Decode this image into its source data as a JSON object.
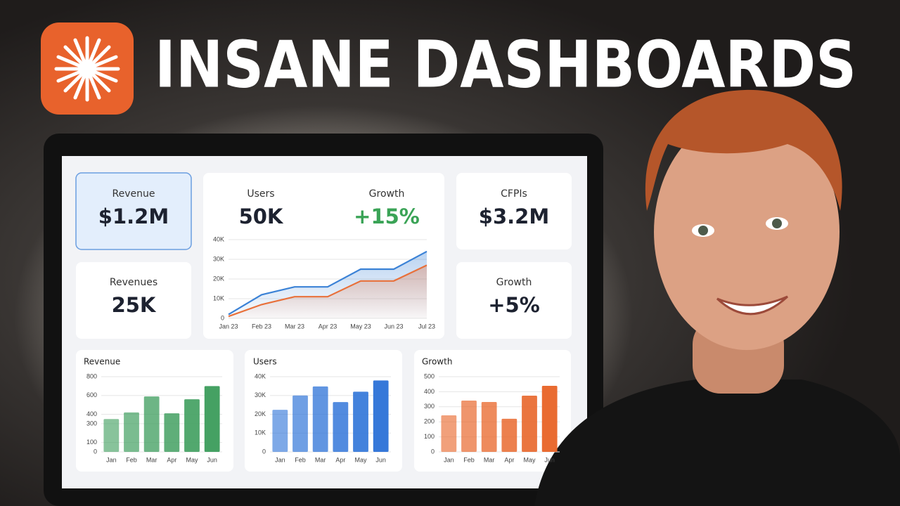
{
  "title": "INSANE DASHBOARDS",
  "kpis": [
    {
      "label": "Revenue",
      "value": "$1.2M"
    },
    {
      "label": "Revenues",
      "value": "25K"
    },
    {
      "label": "Users",
      "value": "50K"
    },
    {
      "label": "Growth",
      "value": "+15%"
    },
    {
      "label": "CFPIs",
      "value": "$3.2M"
    },
    {
      "label": "Growth",
      "value": "+5%"
    }
  ],
  "chart_data": [
    {
      "type": "line",
      "categories": [
        "Jan 23",
        "Feb 23",
        "Mar 23",
        "Apr 23",
        "May 23",
        "Jun 23",
        "Jul 23"
      ],
      "series": [
        {
          "color": "#3b82d6",
          "values": [
            2000,
            12000,
            16000,
            16000,
            25000,
            25000,
            34000
          ]
        },
        {
          "color": "#e8703a",
          "values": [
            1000,
            7000,
            11000,
            11000,
            19000,
            19000,
            27000
          ]
        }
      ],
      "ylim": [
        0,
        40000
      ],
      "yticks": [
        0,
        {
          "value": 10000,
          "label": "10K"
        },
        {
          "value": 20000,
          "label": "20K"
        },
        {
          "value": 30000,
          "label": "30K"
        },
        {
          "value": 40000,
          "label": "40K"
        }
      ],
      "grid": true
    },
    {
      "type": "bar",
      "title": "Revenue",
      "categories": [
        "Jan",
        "Feb",
        "Mar",
        "Apr",
        "May",
        "Jun"
      ],
      "values": [
        350,
        420,
        590,
        410,
        560,
        700
      ],
      "color": "#3f9e5e",
      "ylim": [
        0,
        800
      ],
      "yticks": [
        0,
        100,
        300,
        400,
        600,
        800
      ],
      "grid": true
    },
    {
      "type": "bar",
      "title": "Users",
      "categories": [
        "Jan",
        "Feb",
        "Mar",
        "Apr",
        "May",
        "Jun"
      ],
      "values": [
        22400,
        30000,
        34800,
        26500,
        32000,
        38000
      ],
      "color": "#2f74d8",
      "ylim": [
        0,
        40000
      ],
      "yticks": [
        0,
        {
          "value": 10000,
          "label": "10K"
        },
        {
          "value": 20000,
          "label": "20K"
        },
        {
          "value": 30000,
          "label": "30K"
        },
        {
          "value": 40000,
          "label": "40K"
        }
      ],
      "grid": true
    },
    {
      "type": "bar",
      "title": "Growth",
      "categories": [
        "Jan",
        "Feb",
        "Mar",
        "Apr",
        "May",
        "Jun"
      ],
      "values": [
        243,
        341,
        332,
        220,
        374,
        439
      ],
      "color": "#e8662a",
      "ylim": [
        0,
        500
      ],
      "yticks": [
        0,
        100,
        200,
        300,
        400,
        500
      ],
      "grid": true
    }
  ]
}
